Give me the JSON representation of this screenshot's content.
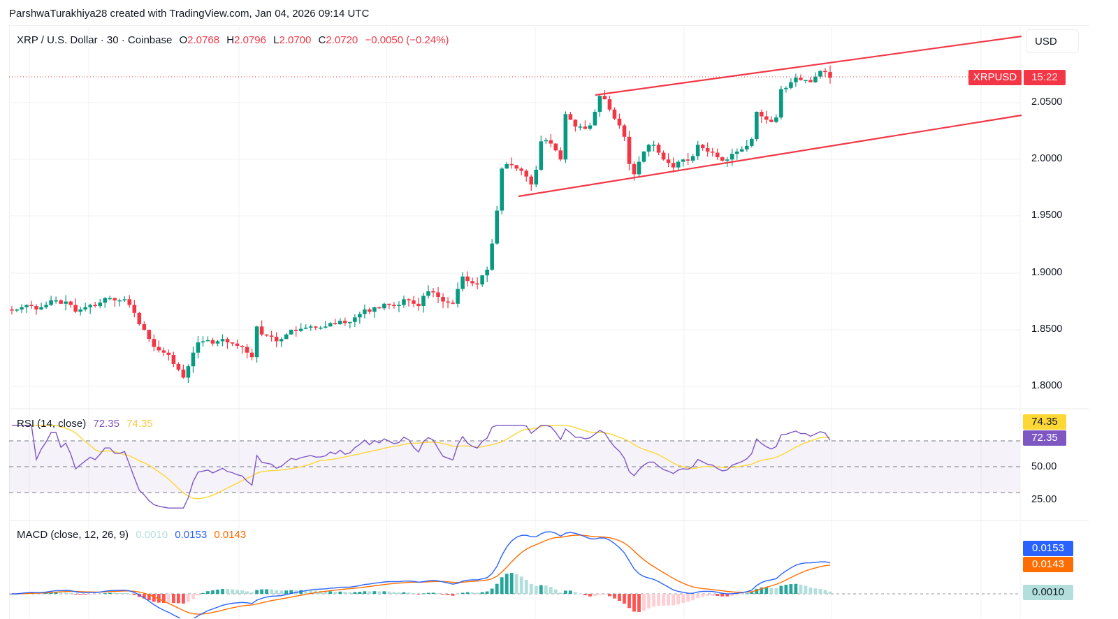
{
  "header": {
    "credit": "ParshwaTurakhiya28 created with TradingView.com, Jan 04, 2026 09:14 UTC"
  },
  "main_legend": {
    "symbol_title": "XRP / U.S. Dollar · 30 · Coinbase",
    "open_key": "O",
    "open": "2.0768",
    "high_key": "H",
    "high": "2.0796",
    "low_key": "L",
    "low": "2.0700",
    "close_key": "C",
    "close": "2.0720",
    "change": "−0.0050 (−0.24%)"
  },
  "price_axis": {
    "currency_button": "USD",
    "ticks": [
      "2.0500",
      "2.0000",
      "1.9500",
      "1.9000",
      "1.8500",
      "1.8000"
    ],
    "symbol_badge": "XRPUSD",
    "countdown_badge": "15:22"
  },
  "rsi": {
    "label": "RSI (14, close)",
    "value": "72.35",
    "ma_value": "74.35",
    "ticks": [
      "50.00",
      "25.00"
    ],
    "badge_ma": "74.35",
    "badge_rsi": "72.35"
  },
  "macd": {
    "label": "MACD (close, 12, 26, 9)",
    "histogram": "0.0010",
    "macd": "0.0153",
    "signal": "0.0143",
    "badge_macd": "0.0153",
    "badge_signal": "0.0143",
    "badge_hist": "0.0010"
  },
  "colors": {
    "up": "#089981",
    "down": "#f23645",
    "channel": "#f23645",
    "rsi_line": "#7e57c2",
    "rsi_ma": "#fdd835",
    "macd_line": "#2962ff",
    "signal_line": "#ff6d00",
    "hist_up_strong": "#26a69a",
    "hist_up_weak": "#b2dfdb",
    "hist_down_strong": "#ff5252",
    "hist_down_weak": "#ffcdd2"
  },
  "chart_data": [
    {
      "type": "candlestick",
      "title": "XRP / U.S. Dollar · 30 · Coinbase",
      "ylabel": "USD",
      "ylim": [
        1.78,
        2.11
      ],
      "y_ticks": [
        1.8,
        1.85,
        1.9,
        1.95,
        2.0,
        2.05
      ],
      "last": {
        "open": 2.0768,
        "high": 2.0796,
        "low": 2.07,
        "close": 2.072,
        "change": -0.005,
        "change_pct": -0.24
      },
      "annotations": [
        {
          "type": "trendline",
          "name": "channel-upper",
          "from_price": 2.056,
          "to_price": 2.095
        },
        {
          "type": "trendline",
          "name": "channel-lower",
          "from_price": 1.967,
          "to_price": 2.037
        },
        {
          "type": "price_line",
          "price": 2.072,
          "label": "XRPUSD",
          "countdown": "15:22"
        }
      ],
      "closes_approx": [
        1.867,
        1.868,
        1.87,
        1.872,
        1.871,
        1.868,
        1.87,
        1.872,
        1.876,
        1.876,
        1.873,
        1.875,
        1.872,
        1.866,
        1.868,
        1.87,
        1.872,
        1.871,
        1.874,
        1.878,
        1.878,
        1.876,
        1.876,
        1.877,
        1.872,
        1.865,
        1.855,
        1.85,
        1.842,
        1.835,
        1.832,
        1.83,
        1.828,
        1.82,
        1.815,
        1.808,
        1.818,
        1.83,
        1.839,
        1.84,
        1.841,
        1.838,
        1.84,
        1.842,
        1.839,
        1.838,
        1.836,
        1.835,
        1.83,
        1.826,
        1.853,
        1.846,
        1.845,
        1.844,
        1.84,
        1.842,
        1.846,
        1.85,
        1.849,
        1.851,
        1.852,
        1.853,
        1.852,
        1.852,
        1.853,
        1.856,
        1.855,
        1.858,
        1.856,
        1.857,
        1.861,
        1.864,
        1.868,
        1.866,
        1.87,
        1.869,
        1.873,
        1.872,
        1.871,
        1.872,
        1.877,
        1.876,
        1.873,
        1.871,
        1.88,
        1.884,
        1.883,
        1.879,
        1.875,
        1.874,
        1.873,
        1.886,
        1.897,
        1.893,
        1.891,
        1.89,
        1.898,
        1.903,
        1.926,
        1.955,
        1.992,
        1.996,
        1.995,
        1.992,
        1.99,
        1.985,
        1.978,
        1.991,
        2.016,
        2.017,
        2.014,
        2.008,
        2.0,
        2.04,
        2.035,
        2.029,
        2.029,
        2.027,
        2.03,
        2.042,
        2.056,
        2.053,
        2.044,
        2.036,
        2.03,
        2.02,
        1.996,
        1.987,
        1.998,
        2.007,
        2.013,
        2.013,
        2.006,
        2.0,
        1.997,
        1.993,
        1.998,
        2.0,
        1.999,
        2.003,
        2.013,
        2.01,
        2.007,
        2.006,
        2.002,
        1.999,
        2.0,
        2.005,
        2.007,
        2.009,
        2.012,
        2.018,
        2.042,
        2.038,
        2.035,
        2.033,
        2.037,
        2.062,
        2.063,
        2.068,
        2.072,
        2.07,
        2.07,
        2.068,
        2.073,
        2.078,
        2.077,
        2.072
      ]
    },
    {
      "type": "line",
      "title": "RSI (14, close)",
      "series": [
        {
          "name": "RSI",
          "last": 72.35
        },
        {
          "name": "RSI-based MA",
          "last": 74.35
        }
      ],
      "bands": {
        "upper": 70,
        "middle": 50,
        "lower": 30
      },
      "y_ticks": [
        25.0,
        50.0
      ]
    },
    {
      "type": "line",
      "title": "MACD (close, 12, 26, 9)",
      "series": [
        {
          "name": "Histogram",
          "last": 0.001
        },
        {
          "name": "MACD",
          "last": 0.0153
        },
        {
          "name": "Signal",
          "last": 0.0143
        }
      ]
    }
  ]
}
